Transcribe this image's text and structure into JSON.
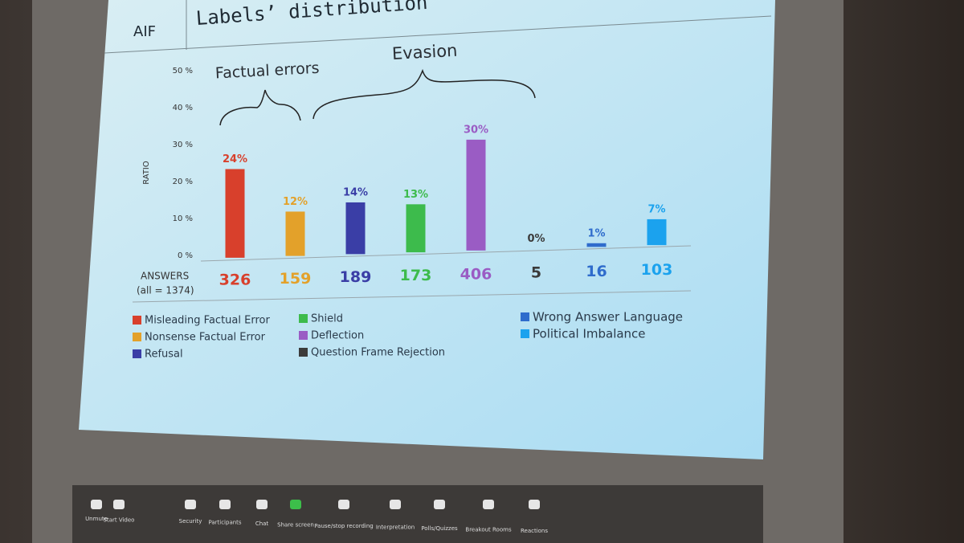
{
  "chart_data": {
    "type": "bar",
    "logo": "AIF",
    "title": "Labels’ distribution",
    "ylabel": "RATIO",
    "categories": [
      "Misleading Factual Error",
      "Nonsense Factual Error",
      "Refusal",
      "Shield",
      "Deflection",
      "Question Frame Rejection",
      "Wrong Answer Language",
      "Political Imbalance"
    ],
    "values": [
      24,
      12,
      14,
      13,
      30,
      0,
      1,
      7
    ],
    "value_labels": [
      "24%",
      "12%",
      "14%",
      "13%",
      "30%",
      "0%",
      "1%",
      "7%"
    ],
    "colors": [
      "#d8402c",
      "#e3a12a",
      "#3a3ea6",
      "#3dbb4c",
      "#9a5cc4",
      "#3b3b3b",
      "#2f6ccc",
      "#1ba2ee"
    ],
    "answers_label": "ANSWERS",
    "answers_total": "(all = 1374)",
    "answers": [
      326,
      159,
      189,
      173,
      406,
      5,
      16,
      103
    ],
    "groups": [
      "Factual errors",
      "Evasion"
    ],
    "ylim": [
      0,
      50
    ],
    "yticks": [
      {
        "value": 0,
        "label": "0 %"
      },
      {
        "value": 10,
        "label": "10 %"
      },
      {
        "value": 20,
        "label": "20 %"
      },
      {
        "value": 30,
        "label": "30 %"
      },
      {
        "value": 40,
        "label": "40 %"
      },
      {
        "value": 50,
        "label": "50 %"
      }
    ],
    "grid": false
  },
  "toolbar": {
    "items": [
      "Unmute",
      "Start Video",
      "Security",
      "Participants",
      "Chat",
      "Share screen",
      "Pause/stop recording",
      "Interpretation",
      "Polls/Quizzes",
      "Breakout Rooms",
      "Reactions"
    ]
  }
}
